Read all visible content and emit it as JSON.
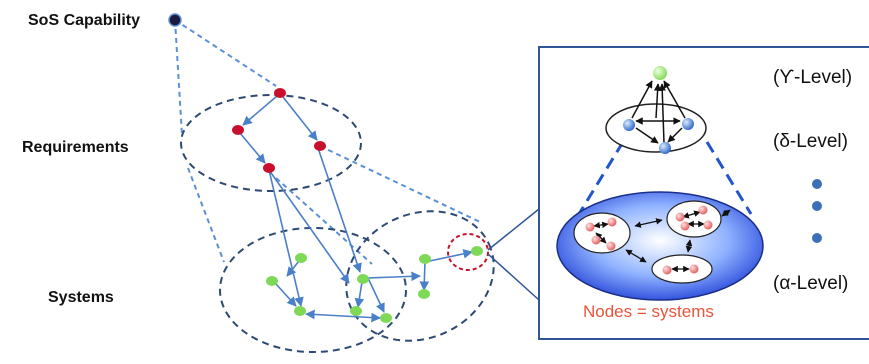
{
  "labels": {
    "sos_capability": "SoS Capability",
    "requirements": "Requirements",
    "systems": "Systems"
  },
  "inset": {
    "levels": {
      "upsilon": "(ϒ-Level)",
      "delta": "(δ-Level)",
      "alpha": "(α-Level)"
    },
    "caption": "Nodes = systems"
  },
  "colors": {
    "dashed_line": "#5b8fd6",
    "ellipse_outline": "#2d4a73",
    "requirement_node": "#c8102e",
    "system_node": "#7ed957",
    "capability_node": "#1a1a40",
    "inset_border": "#2f5597",
    "caption_text": "#e8543a",
    "level_dot": "#3b6fb6"
  }
}
